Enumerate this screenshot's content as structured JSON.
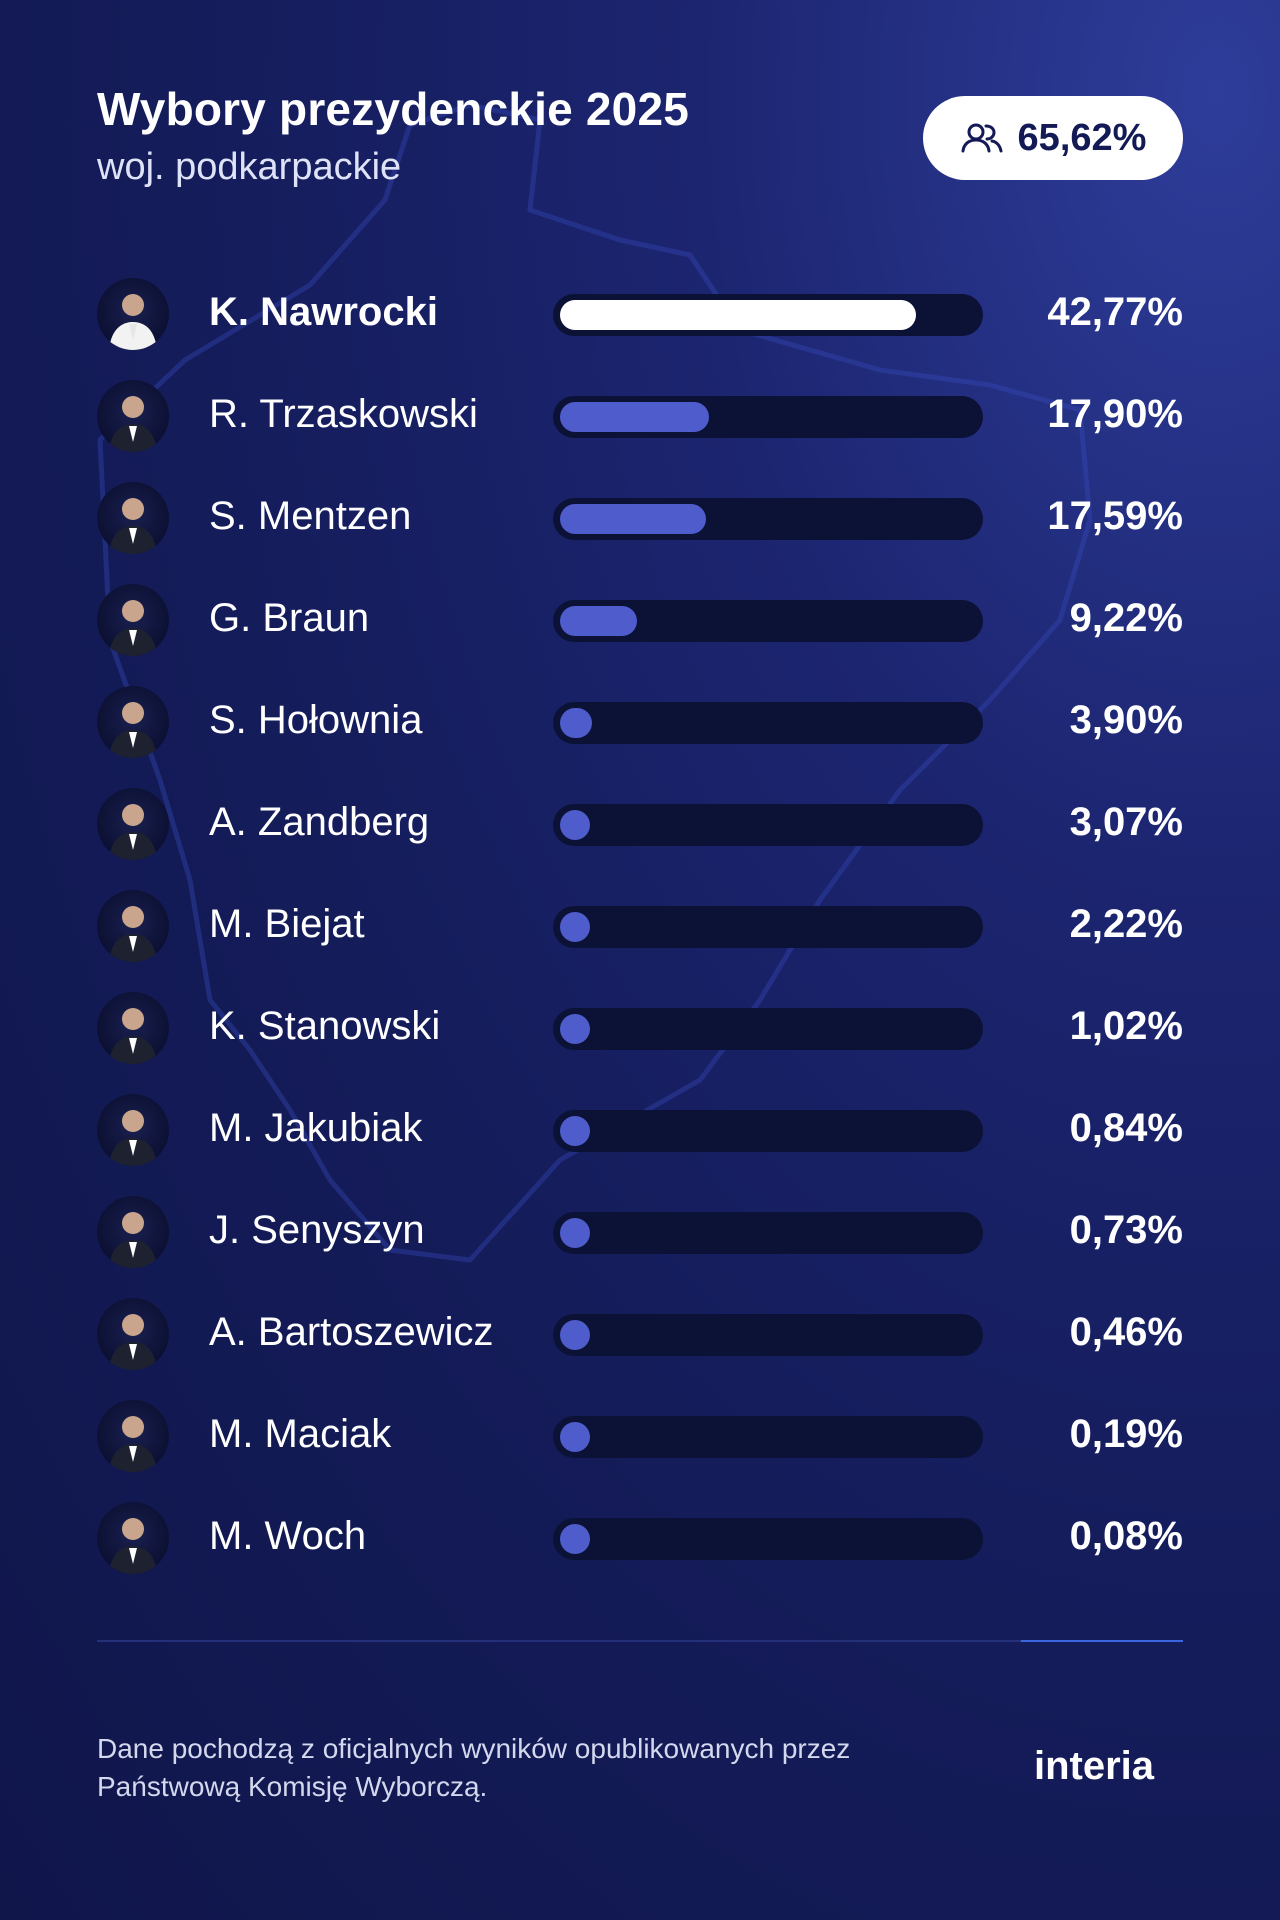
{
  "header": {
    "title": "Wybory prezydenckie 2025",
    "subtitle": "woj. podkarpackie",
    "turnout": "65,62%",
    "turnout_icon": "people-icon"
  },
  "colors": {
    "background": "#141c5a",
    "leader_bar": "#ffffff",
    "bar": "#4e5ccc",
    "track": "#0c1236",
    "divider_accent": "#3b66e0"
  },
  "chart_data": {
    "type": "bar",
    "orientation": "horizontal",
    "title": "Wybory prezydenckie 2025",
    "subtitle": "woj. podkarpackie",
    "xlim": [
      0,
      50
    ],
    "unit": "%",
    "categories": [
      "K. Nawrocki",
      "R. Trzaskowski",
      "S. Mentzen",
      "G. Braun",
      "S. Hołownia",
      "A. Zandberg",
      "M. Biejat",
      "K. Stanowski",
      "M. Jakubiak",
      "J. Senyszyn",
      "A. Bartoszewicz",
      "M. Maciak",
      "M. Woch"
    ],
    "values": [
      42.77,
      17.9,
      17.59,
      9.22,
      3.9,
      3.07,
      2.22,
      1.02,
      0.84,
      0.73,
      0.46,
      0.19,
      0.08
    ],
    "labels": [
      "42,77%",
      "17,90%",
      "17,59%",
      "9,22%",
      "3,90%",
      "3,07%",
      "2,22%",
      "1,02%",
      "0,84%",
      "0,73%",
      "0,46%",
      "0,19%",
      "0,08%"
    ]
  },
  "footer": {
    "source": "Dane pochodzą z oficjalnych wyników opublikowanych przez Państwową Komisję Wyborczą.",
    "logo": "interia",
    "logo_icon": "interia-logo"
  }
}
